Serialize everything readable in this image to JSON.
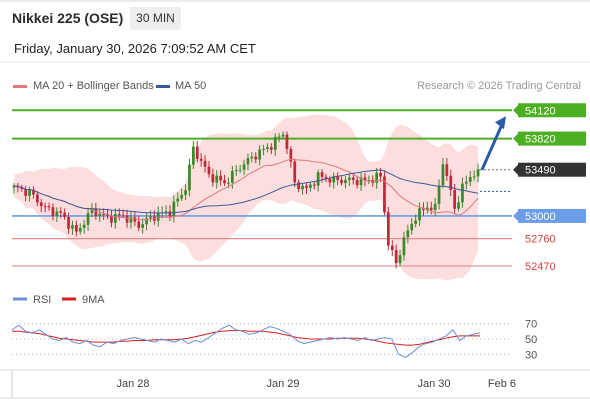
{
  "header": {
    "title": "Nikkei 225 (OSE)",
    "timeframe": "30 MIN",
    "datetime": "Friday, January 30, 2026 7:09:52 AM CET"
  },
  "credit": "Research © 2026 Trading Central",
  "colors": {
    "resistance": "#4caf22",
    "support_blue": "#6b9ee8",
    "support_red": "#e78d8d",
    "bull_candle": "#3a8a2a",
    "bear_candle": "#c0283a",
    "bollinger": "#fbd8d8",
    "ma20": "#e4797a",
    "ma50": "#3a5a9a",
    "arrow": "#2a5ba8",
    "rsi": "#6d8fd6",
    "rsi_ma": "#d9201e",
    "last_price": "#333333"
  },
  "chart_data": [
    {
      "type": "candlestick",
      "legend": [
        "MA 20 + Bollinger Bands",
        "MA 50"
      ],
      "x_labels": [
        "Jan 28",
        "Jan 29",
        "Jan 30",
        "Feb 6"
      ],
      "y_range": [
        52300,
        54250
      ],
      "levels": [
        {
          "value": 54120,
          "label": "54120",
          "kind": "resistance"
        },
        {
          "value": 53820,
          "label": "53820",
          "kind": "resistance"
        },
        {
          "value": 53490,
          "label": "53490",
          "kind": "last"
        },
        {
          "value": 53000,
          "label": "53000",
          "kind": "support_blue"
        },
        {
          "value": 52760,
          "label": "52760",
          "kind": "support_red"
        },
        {
          "value": 52470,
          "label": "52470",
          "kind": "support_red"
        }
      ],
      "last_price": 53490,
      "target": 54120,
      "ma50_last": 53260,
      "close_path": [
        {
          "i": 0,
          "v": 53300
        },
        {
          "i": 4,
          "v": 53250
        },
        {
          "i": 8,
          "v": 53080
        },
        {
          "i": 12,
          "v": 53020
        },
        {
          "i": 16,
          "v": 52820
        },
        {
          "i": 20,
          "v": 53060
        },
        {
          "i": 24,
          "v": 52980
        },
        {
          "i": 28,
          "v": 53000
        },
        {
          "i": 32,
          "v": 52900
        },
        {
          "i": 36,
          "v": 53000
        },
        {
          "i": 40,
          "v": 53050
        },
        {
          "i": 44,
          "v": 53300
        },
        {
          "i": 46,
          "v": 53720
        },
        {
          "i": 50,
          "v": 53430
        },
        {
          "i": 54,
          "v": 53350
        },
        {
          "i": 58,
          "v": 53520
        },
        {
          "i": 62,
          "v": 53650
        },
        {
          "i": 66,
          "v": 53750
        },
        {
          "i": 69,
          "v": 53880
        },
        {
          "i": 70,
          "v": 53730
        },
        {
          "i": 72,
          "v": 53350
        },
        {
          "i": 75,
          "v": 53280
        },
        {
          "i": 78,
          "v": 53420
        },
        {
          "i": 82,
          "v": 53380
        },
        {
          "i": 86,
          "v": 53380
        },
        {
          "i": 90,
          "v": 53370
        },
        {
          "i": 94,
          "v": 53420
        },
        {
          "i": 96,
          "v": 52700
        },
        {
          "i": 98,
          "v": 52500
        },
        {
          "i": 100,
          "v": 52750
        },
        {
          "i": 103,
          "v": 53000
        },
        {
          "i": 106,
          "v": 53100
        },
        {
          "i": 108,
          "v": 53080
        },
        {
          "i": 110,
          "v": 53580
        },
        {
          "i": 112,
          "v": 53250
        },
        {
          "i": 113,
          "v": 53080
        },
        {
          "i": 115,
          "v": 53300
        },
        {
          "i": 117,
          "v": 53420
        },
        {
          "i": 119,
          "v": 53490
        }
      ],
      "candle_count": 120
    },
    {
      "type": "line",
      "legend": [
        "RSI",
        "9MA"
      ],
      "y_ticks": [
        70,
        50,
        30
      ],
      "y_range": [
        20,
        80
      ],
      "rsi": [
        62,
        68,
        60,
        58,
        62,
        56,
        50,
        48,
        52,
        46,
        44,
        48,
        42,
        40,
        46,
        44,
        48,
        50,
        52,
        50,
        48,
        46,
        50,
        48,
        46,
        50,
        44,
        48,
        46,
        52,
        58,
        64,
        68,
        62,
        60,
        56,
        58,
        62,
        66,
        64,
        60,
        56,
        48,
        44,
        46,
        48,
        50,
        52,
        50,
        52,
        50,
        48,
        52,
        48,
        50,
        52,
        50,
        30,
        26,
        32,
        40,
        44,
        46,
        50,
        54,
        62,
        48,
        54,
        56,
        58
      ],
      "rsi_ma": [
        60,
        60,
        59,
        58,
        57,
        55,
        53,
        51,
        50,
        49,
        48,
        47,
        46,
        46,
        46,
        46,
        47,
        47,
        48,
        48,
        48,
        49,
        49,
        49,
        49,
        50,
        51,
        53,
        55,
        57,
        59,
        60,
        61,
        61,
        61,
        60,
        60,
        60,
        59,
        58,
        56,
        54,
        52,
        51,
        50,
        50,
        50,
        50,
        51,
        51,
        51,
        51,
        50,
        49,
        47,
        45,
        44,
        43,
        42,
        42,
        43,
        45,
        47,
        49,
        51,
        53,
        54,
        54,
        54,
        54
      ]
    }
  ]
}
